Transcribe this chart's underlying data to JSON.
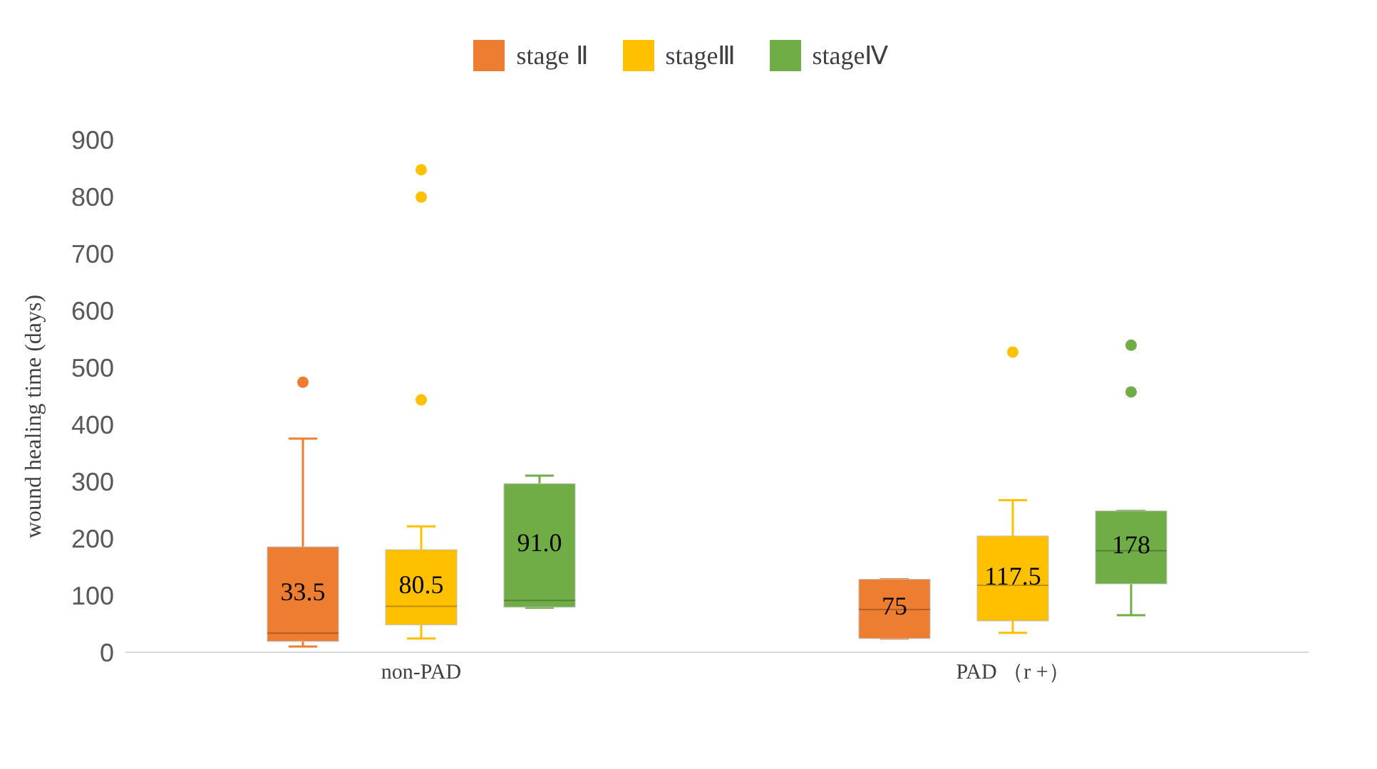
{
  "chart_data": {
    "type": "box",
    "ylabel": "wound healing time (days)",
    "categories": [
      "non-PAD",
      "PAD （r +）"
    ],
    "ylim": [
      0,
      900
    ],
    "yticks": [
      0,
      100,
      200,
      300,
      400,
      500,
      600,
      700,
      800,
      900
    ],
    "legend": "top",
    "series": [
      {
        "name": "stage Ⅱ",
        "color": "#ed7d31",
        "value_labels": [
          "33.5",
          "75"
        ],
        "boxes": [
          {
            "low": 10,
            "q1": 19,
            "median": 33.5,
            "q3": 185,
            "high": 375,
            "outliers": [
              474
            ]
          },
          {
            "low": 24,
            "q1": 24,
            "median": 75,
            "q3": 128,
            "high": 128
          }
        ]
      },
      {
        "name": "stageⅢ",
        "color": "#ffc000",
        "value_labels": [
          "80.5",
          "117.5"
        ],
        "boxes": [
          {
            "low": 24,
            "q1": 48,
            "median": 80.5,
            "q3": 180,
            "high": 221,
            "outliers": [
              847,
              799,
              443
            ]
          },
          {
            "low": 34,
            "q1": 55,
            "median": 117.5,
            "q3": 204,
            "high": 267,
            "outliers": [
              527
            ]
          }
        ]
      },
      {
        "name": "stageⅣ",
        "color": "#70ad47",
        "value_labels": [
          "91.0",
          "178"
        ],
        "boxes": [
          {
            "low": 78,
            "q1": 79,
            "median": 91,
            "q3": 296,
            "high": 310
          },
          {
            "low": 65,
            "q1": 120,
            "median": 178,
            "q3": 248,
            "high": 248,
            "outliers": [
              539,
              457
            ]
          }
        ]
      }
    ]
  }
}
